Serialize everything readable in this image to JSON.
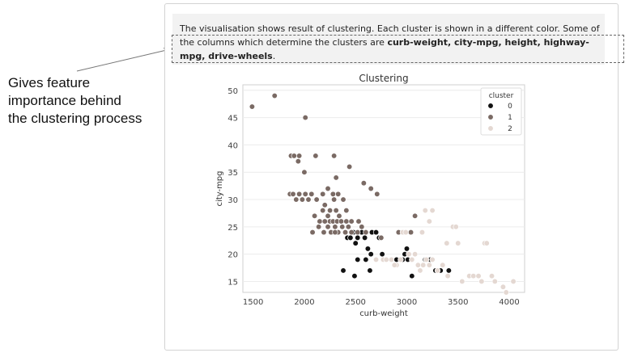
{
  "annotation": {
    "lines": [
      "Gives feature",
      "importance behind",
      "the clustering process"
    ]
  },
  "description": {
    "prefix": "The visualisation shows result of clustering. Each cluster is shown in a different color. Some of the columns which determine the clusters are ",
    "features": "curb-weight, city-mpg, height, highway-mpg, drive-wheels",
    "suffix": "."
  },
  "colors": {
    "cluster_0": "#111111",
    "cluster_1": "#7a6a64",
    "cluster_2": "#e4d8d2",
    "highlight_border": "#666666",
    "panel_border": "#d3d3d3"
  },
  "chart_data": {
    "type": "scatter",
    "title": "Clustering",
    "xlabel": "curb-weight",
    "ylabel": "city-mpg",
    "xlim": [
      1400,
      4150
    ],
    "ylim": [
      13,
      51
    ],
    "xticks": [
      1500,
      2000,
      2500,
      3000,
      3500,
      4000
    ],
    "yticks": [
      15,
      20,
      25,
      30,
      35,
      40,
      45,
      50
    ],
    "grid": true,
    "legend": {
      "title": "cluster",
      "placement": "top-right",
      "entries": [
        "0",
        "1",
        "2"
      ]
    },
    "series": [
      {
        "name": "0",
        "points": [
          [
            2380,
            17
          ],
          [
            2420,
            23
          ],
          [
            2450,
            23
          ],
          [
            2480,
            24
          ],
          [
            2500,
            22
          ],
          [
            2520,
            23
          ],
          [
            2560,
            24
          ],
          [
            2590,
            23
          ],
          [
            2620,
            21
          ],
          [
            2660,
            24
          ],
          [
            2700,
            24
          ],
          [
            2730,
            23
          ],
          [
            2520,
            19
          ],
          [
            2490,
            16
          ],
          [
            2600,
            19
          ],
          [
            2650,
            20
          ],
          [
            2700,
            19
          ],
          [
            2760,
            20
          ],
          [
            2900,
            19
          ],
          [
            2960,
            19
          ],
          [
            2980,
            20
          ],
          [
            3010,
            19
          ],
          [
            3050,
            16
          ],
          [
            3180,
            19
          ],
          [
            3230,
            19
          ],
          [
            3280,
            17
          ],
          [
            3330,
            17
          ],
          [
            3410,
            17
          ],
          [
            3000,
            21
          ],
          [
            2640,
            17
          ]
        ]
      },
      {
        "name": "1",
        "points": [
          [
            1490,
            47
          ],
          [
            1710,
            49
          ],
          [
            2010,
            45
          ],
          [
            1870,
            38
          ],
          [
            1900,
            38
          ],
          [
            1940,
            37
          ],
          [
            1950,
            38
          ],
          [
            2110,
            38
          ],
          [
            2290,
            38
          ],
          [
            2440,
            36
          ],
          [
            2000,
            35
          ],
          [
            2310,
            34
          ],
          [
            2580,
            33
          ],
          [
            2230,
            32
          ],
          [
            2650,
            32
          ],
          [
            1860,
            31
          ],
          [
            1890,
            31
          ],
          [
            1920,
            30
          ],
          [
            1950,
            31
          ],
          [
            1980,
            30
          ],
          [
            2010,
            31
          ],
          [
            2040,
            30
          ],
          [
            2070,
            31
          ],
          [
            2120,
            30
          ],
          [
            2180,
            31
          ],
          [
            2280,
            31
          ],
          [
            2290,
            30
          ],
          [
            2330,
            31
          ],
          [
            2380,
            30
          ],
          [
            2200,
            29
          ],
          [
            2250,
            28
          ],
          [
            2310,
            28
          ],
          [
            2100,
            27
          ],
          [
            2230,
            27
          ],
          [
            2340,
            27
          ],
          [
            2410,
            28
          ],
          [
            2150,
            26
          ],
          [
            2200,
            26
          ],
          [
            2250,
            26
          ],
          [
            2280,
            26
          ],
          [
            2320,
            26
          ],
          [
            2360,
            26
          ],
          [
            2410,
            26
          ],
          [
            2460,
            26
          ],
          [
            2530,
            26
          ],
          [
            2710,
            31
          ],
          [
            2080,
            24
          ],
          [
            2140,
            25
          ],
          [
            2190,
            24
          ],
          [
            2230,
            25
          ],
          [
            2260,
            24
          ],
          [
            2300,
            25
          ],
          [
            2330,
            24
          ],
          [
            2370,
            25
          ],
          [
            2400,
            24
          ],
          [
            2430,
            25
          ],
          [
            2460,
            24
          ],
          [
            2520,
            24
          ],
          [
            2560,
            25
          ],
          [
            2600,
            24
          ],
          [
            2750,
            23
          ],
          [
            3080,
            27
          ],
          [
            2920,
            24
          ],
          [
            3040,
            24
          ],
          [
            2300,
            24
          ],
          [
            2180,
            28
          ]
        ]
      },
      {
        "name": "2",
        "points": [
          [
            2770,
            19
          ],
          [
            2800,
            19
          ],
          [
            2850,
            19
          ],
          [
            2900,
            18
          ],
          [
            2940,
            19
          ],
          [
            2960,
            24
          ],
          [
            2990,
            24
          ],
          [
            3020,
            20
          ],
          [
            3050,
            19
          ],
          [
            3080,
            20
          ],
          [
            3110,
            18
          ],
          [
            3130,
            17
          ],
          [
            3160,
            18
          ],
          [
            3190,
            19
          ],
          [
            3220,
            18
          ],
          [
            3250,
            19
          ],
          [
            3300,
            17
          ],
          [
            3350,
            18
          ],
          [
            3400,
            16
          ],
          [
            3150,
            24
          ],
          [
            3180,
            28
          ],
          [
            3220,
            26
          ],
          [
            3250,
            28
          ],
          [
            3390,
            22
          ],
          [
            3450,
            25
          ],
          [
            3480,
            25
          ],
          [
            3500,
            22
          ],
          [
            3540,
            15
          ],
          [
            3610,
            16
          ],
          [
            3650,
            16
          ],
          [
            3700,
            16
          ],
          [
            3730,
            15
          ],
          [
            3760,
            22
          ],
          [
            3780,
            22
          ],
          [
            3830,
            16
          ],
          [
            3860,
            15
          ],
          [
            3940,
            14
          ],
          [
            3970,
            13
          ],
          [
            4040,
            15
          ],
          [
            2880,
            18
          ],
          [
            2700,
            19
          ]
        ]
      }
    ]
  }
}
